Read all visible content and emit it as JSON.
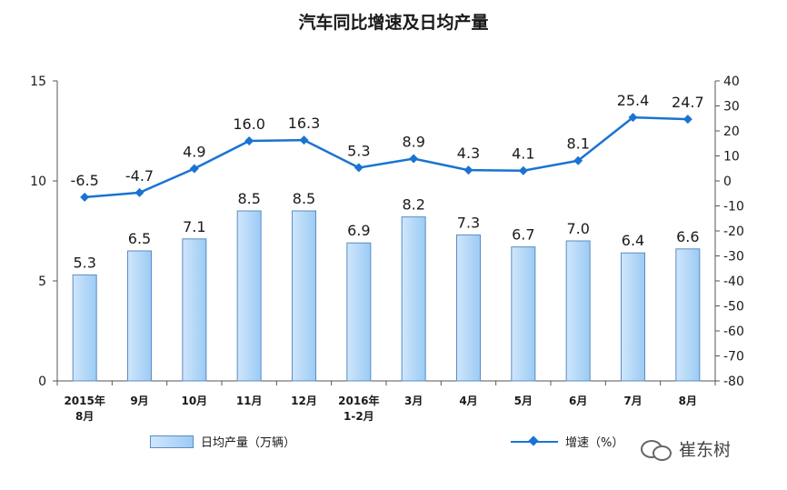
{
  "chart_data": {
    "type": "bar+line",
    "title": "汽车同比增速及日均产量",
    "categories": [
      "2015年\n8月",
      "9月",
      "10月",
      "11月",
      "12月",
      "2016年\n1-2月",
      "3月",
      "4月",
      "5月",
      "6月",
      "7月",
      "8月"
    ],
    "series": [
      {
        "name": "日均产量（万辆）",
        "type": "bar",
        "axis": "left",
        "values": [
          5.3,
          6.5,
          7.1,
          8.5,
          8.5,
          6.9,
          8.2,
          7.3,
          6.7,
          7.0,
          6.4,
          6.6
        ]
      },
      {
        "name": "增速（%）",
        "type": "line",
        "axis": "right",
        "values": [
          -6.5,
          -4.7,
          4.9,
          16.0,
          16.3,
          5.3,
          8.9,
          4.3,
          4.1,
          8.1,
          25.4,
          24.7
        ]
      }
    ],
    "left_axis": {
      "range": [
        0,
        15
      ],
      "ticks": [
        0,
        5,
        10,
        15
      ]
    },
    "right_axis": {
      "range": [
        -80,
        40
      ],
      "ticks": [
        40,
        30,
        20,
        10,
        0,
        -10,
        -20,
        -30,
        -40,
        -50,
        -60,
        -70,
        -80
      ]
    },
    "grid": false,
    "legend": "bottom",
    "colors": {
      "bar_fill_light": "#cfe6fb",
      "bar_fill_dark": "#9ccbf4",
      "bar_border": "#5b8bc7",
      "line": "#1a73d1",
      "axis": "#555555"
    }
  },
  "watermark": {
    "text": "崔东树",
    "icon": "wechat-icon"
  }
}
